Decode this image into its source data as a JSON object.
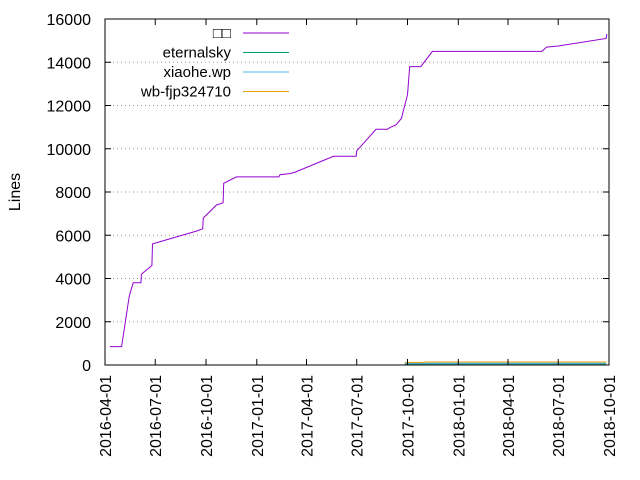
{
  "chart_data": {
    "type": "line",
    "title": "",
    "xlabel": "",
    "ylabel": "Lines",
    "ylim": [
      0,
      16000
    ],
    "y_ticks": [
      0,
      2000,
      4000,
      6000,
      8000,
      10000,
      12000,
      14000,
      16000
    ],
    "x_range": [
      "2016-04-01",
      "2018-10-01"
    ],
    "x_ticks": [
      "2016-04-01",
      "2016-07-01",
      "2016-10-01",
      "2017-01-01",
      "2017-04-01",
      "2017-07-01",
      "2017-10-01",
      "2018-01-01",
      "2018-04-01",
      "2018-07-01",
      "2018-10-01"
    ],
    "grid": "y-dotted",
    "legend_placement": "top-left",
    "series": [
      {
        "name": "□□",
        "color": "#9400d3",
        "points": [
          [
            "2016-04-10",
            850
          ],
          [
            "2016-05-01",
            850
          ],
          [
            "2016-05-15",
            3200
          ],
          [
            "2016-05-22",
            3800
          ],
          [
            "2016-06-05",
            3800
          ],
          [
            "2016-06-06",
            4200
          ],
          [
            "2016-06-25",
            4600
          ],
          [
            "2016-06-26",
            5600
          ],
          [
            "2016-09-15",
            6200
          ],
          [
            "2016-09-25",
            6300
          ],
          [
            "2016-09-26",
            6800
          ],
          [
            "2016-10-20",
            7400
          ],
          [
            "2016-11-01",
            7500
          ],
          [
            "2016-11-02",
            8400
          ],
          [
            "2016-11-25",
            8700
          ],
          [
            "2017-01-15",
            8700
          ],
          [
            "2017-02-10",
            8700
          ],
          [
            "2017-02-12",
            8800
          ],
          [
            "2017-03-01",
            8850
          ],
          [
            "2017-03-10",
            8900
          ],
          [
            "2017-05-20",
            9650
          ],
          [
            "2017-06-30",
            9650
          ],
          [
            "2017-07-01",
            9900
          ],
          [
            "2017-08-05",
            10900
          ],
          [
            "2017-08-25",
            10900
          ],
          [
            "2017-09-01",
            11000
          ],
          [
            "2017-09-10",
            11100
          ],
          [
            "2017-09-20",
            11400
          ],
          [
            "2017-10-01",
            12500
          ],
          [
            "2017-10-05",
            13800
          ],
          [
            "2017-10-25",
            13800
          ],
          [
            "2017-11-15",
            14500
          ],
          [
            "2018-06-01",
            14500
          ],
          [
            "2018-06-10",
            14700
          ],
          [
            "2018-07-01",
            14750
          ],
          [
            "2018-09-26",
            15100
          ],
          [
            "2018-09-27",
            15300
          ]
        ]
      },
      {
        "name": "eternalsky",
        "color": "#009e73",
        "points": [
          [
            "2017-09-26",
            50
          ],
          [
            "2018-09-26",
            50
          ]
        ]
      },
      {
        "name": "xiaohe.wp",
        "color": "#56b4e9",
        "points": [
          [
            "2017-09-26",
            80
          ],
          [
            "2018-09-26",
            80
          ]
        ]
      },
      {
        "name": "wb-fjp324710",
        "color": "#e69f00",
        "points": [
          [
            "2017-09-26",
            120
          ],
          [
            "2017-11-01",
            120
          ],
          [
            "2017-11-02",
            140
          ],
          [
            "2018-09-26",
            140
          ]
        ]
      }
    ]
  }
}
